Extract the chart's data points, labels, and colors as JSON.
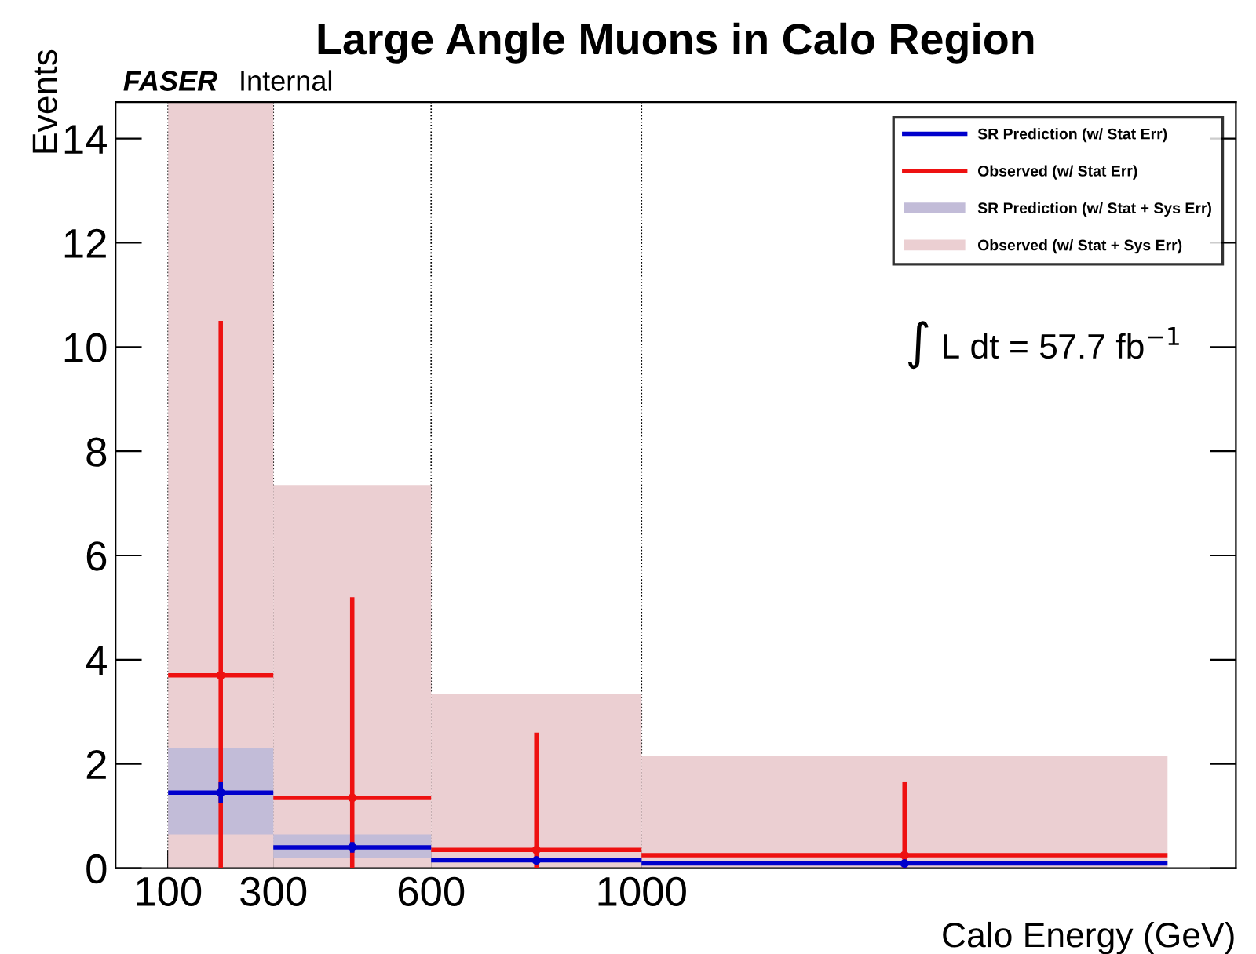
{
  "chart_data": {
    "type": "scatter",
    "title": "Large Angle Muons in Calo Region",
    "xlabel": "Calo Energy (GeV)",
    "ylabel": "Events",
    "xlim": [
      0,
      2130
    ],
    "xticks": [
      100,
      300,
      600,
      1000
    ],
    "ylim": [
      0,
      14.7
    ],
    "yticks": [
      0,
      2,
      4,
      6,
      8,
      10,
      12,
      14
    ],
    "grid": "x",
    "legend": "top right",
    "marker": "circle",
    "annotations": [
      "FASER",
      "Internal",
      "∫ L dt = 57.7 fb$^{−1}$"
    ],
    "series": [
      {
        "name": "Observed (w/ Stat + Sys Err)",
        "type": "bar",
        "color": "#ebcfd2",
        "x": [
          200,
          450,
          800,
          1500
        ],
        "base": [
          0,
          0,
          0,
          0
        ],
        "values": [
          14.7,
          7.35,
          3.35,
          2.15
        ]
      },
      {
        "name": "SR Prediction (w/ Stat + Sys Err)",
        "type": "bar",
        "color": "#c2bcd8",
        "x": [
          200,
          450
        ],
        "base": [
          0.65,
          0.2
        ],
        "values": [
          1.65,
          0.45
        ]
      },
      {
        "name": "Observed (w/ Stat Err)",
        "color": "#ee1111",
        "x": [
          200,
          450,
          800,
          1500
        ],
        "xerrors": [
          100,
          150,
          200,
          500
        ],
        "values": [
          3.7,
          1.35,
          0.35,
          0.25
        ],
        "errors": [
          [
            0,
            10.5
          ],
          [
            0,
            5.2
          ],
          [
            0,
            2.6
          ],
          [
            0,
            1.65
          ]
        ]
      },
      {
        "name": "SR Prediction (w/ Stat Err)",
        "color": "#0000cc",
        "x": [
          200,
          450,
          800,
          1500
        ],
        "xerrors": [
          100,
          150,
          200,
          500
        ],
        "values": [
          1.45,
          0.4,
          0.15,
          0.09
        ],
        "errors": [
          [
            1.25,
            1.65
          ],
          [
            0.3,
            0.5
          ],
          null,
          null
        ]
      }
    ]
  }
}
